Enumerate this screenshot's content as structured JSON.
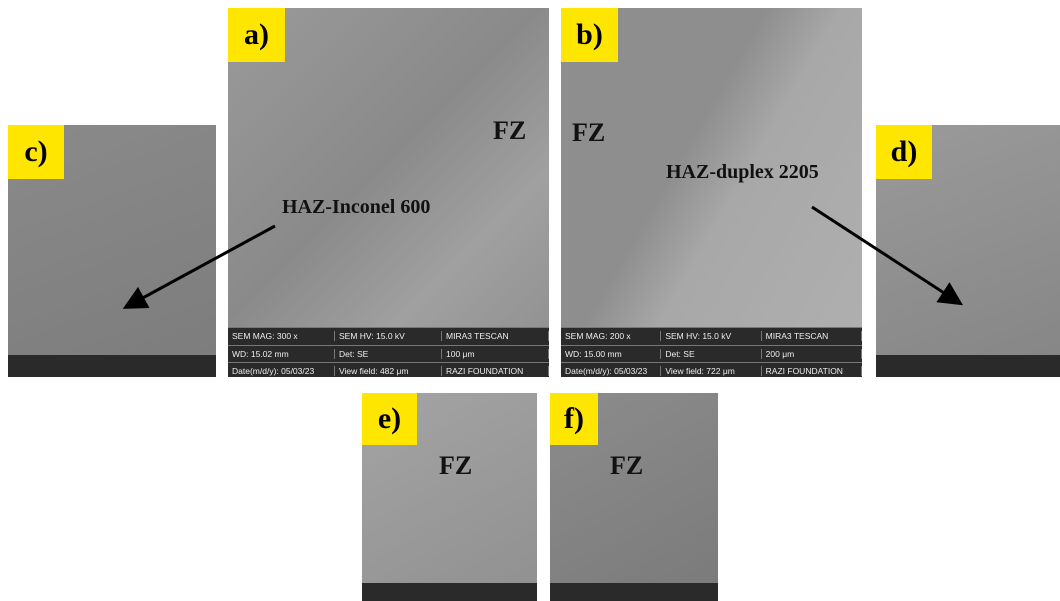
{
  "panels": [
    {
      "label": "a)",
      "annotations": [
        "FZ"
      ],
      "info": [
        [
          "SEM MAG: 300 x",
          "SEM HV: 15.0 kV",
          "MIRA3 TESCAN"
        ],
        [
          "WD: 15.02 mm",
          "Det: SE",
          "100 μm"
        ],
        [
          "Date(m/d/y): 05/03/23",
          "View field: 482 μm",
          "RAZI FOUNDATION"
        ]
      ]
    },
    {
      "label": "b)",
      "annotations": [
        "FZ"
      ],
      "info": [
        [
          "SEM MAG: 200 x",
          "SEM HV: 15.0 kV",
          "MIRA3 TESCAN"
        ],
        [
          "WD: 15.00 mm",
          "Det: SE",
          "200 μm"
        ],
        [
          "Date(m/d/y): 05/03/23",
          "View field: 722 μm",
          "RAZI FOUNDATION"
        ]
      ]
    },
    {
      "label": "c)",
      "annotations": []
    },
    {
      "label": "d)",
      "annotations": []
    },
    {
      "label": "e)",
      "annotations": [
        "FZ"
      ]
    },
    {
      "label": "f)",
      "annotations": [
        "FZ"
      ]
    }
  ],
  "callouts": [
    "HAZ-Inconel 600",
    "HAZ-duplex 2205"
  ]
}
